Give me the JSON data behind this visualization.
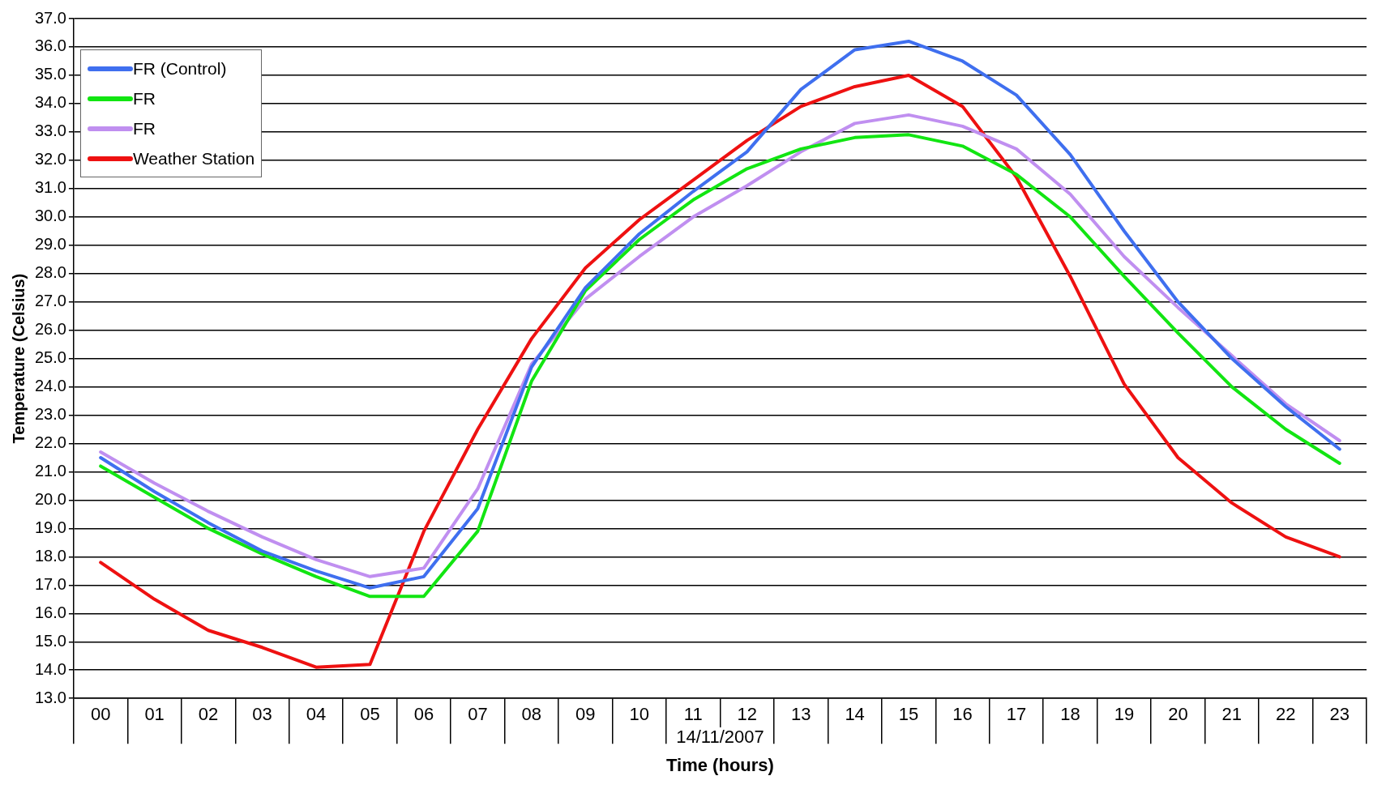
{
  "chart_data": {
    "type": "line",
    "xlabel": "Time (hours)",
    "ylabel": "Temperature (Celsius)",
    "annotations": [
      "14/11/2007"
    ],
    "categories": [
      "00",
      "01",
      "02",
      "03",
      "04",
      "05",
      "06",
      "07",
      "08",
      "09",
      "10",
      "11",
      "12",
      "13",
      "14",
      "15",
      "16",
      "17",
      "18",
      "19",
      "20",
      "21",
      "22",
      "23"
    ],
    "series": [
      {
        "name": "FR (Control)",
        "color": "#3f6fef",
        "values": [
          21.5,
          20.3,
          19.2,
          18.2,
          17.5,
          16.9,
          17.3,
          19.7,
          24.7,
          27.5,
          29.4,
          30.9,
          32.3,
          34.5,
          35.9,
          36.2,
          35.5,
          34.3,
          32.2,
          29.5,
          27.0,
          25.0,
          23.3,
          21.8
        ]
      },
      {
        "name": "FR",
        "color": "#12e512",
        "values": [
          21.2,
          20.1,
          19.0,
          18.1,
          17.3,
          16.6,
          16.6,
          18.9,
          24.2,
          27.4,
          29.2,
          30.6,
          31.7,
          32.4,
          32.8,
          32.9,
          32.5,
          31.5,
          30.0,
          27.9,
          25.9,
          24.0,
          22.5,
          21.3
        ]
      },
      {
        "name": "FR",
        "color": "#c08ff0",
        "values": [
          21.7,
          20.6,
          19.6,
          18.7,
          17.9,
          17.3,
          17.6,
          20.4,
          24.8,
          27.1,
          28.6,
          30.0,
          31.1,
          32.3,
          33.3,
          33.6,
          33.2,
          32.4,
          30.8,
          28.6,
          26.8,
          25.1,
          23.4,
          22.1
        ]
      },
      {
        "name": "Weather Station",
        "color": "#ee1111",
        "values": [
          17.8,
          16.5,
          15.4,
          14.8,
          14.1,
          14.2,
          18.9,
          22.5,
          25.7,
          28.2,
          29.9,
          31.3,
          32.7,
          33.9,
          34.6,
          35.0,
          33.9,
          31.4,
          27.9,
          24.1,
          21.5,
          19.9,
          18.7,
          18.0
        ]
      }
    ],
    "ylim": [
      13,
      37
    ],
    "yticks": [
      {
        "value": 13,
        "label": "13.0"
      },
      {
        "value": 14,
        "label": "14.0"
      },
      {
        "value": 15,
        "label": "15.0"
      },
      {
        "value": 16,
        "label": "16.0"
      },
      {
        "value": 17,
        "label": "17.0"
      },
      {
        "value": 18,
        "label": "18.0"
      },
      {
        "value": 19,
        "label": "19.0"
      },
      {
        "value": 20,
        "label": "20.0"
      },
      {
        "value": 21,
        "label": "21.0"
      },
      {
        "value": 22,
        "label": "22.0"
      },
      {
        "value": 23,
        "label": "23.0"
      },
      {
        "value": 24,
        "label": "24.0"
      },
      {
        "value": 25,
        "label": "25.0"
      },
      {
        "value": 26,
        "label": "26.0"
      },
      {
        "value": 27,
        "label": "27.0"
      },
      {
        "value": 28,
        "label": "28.0"
      },
      {
        "value": 29,
        "label": "29.0"
      },
      {
        "value": 30,
        "label": "30.0"
      },
      {
        "value": 31,
        "label": "31.0"
      },
      {
        "value": 32,
        "label": "32.0"
      },
      {
        "value": 33,
        "label": "33.0"
      },
      {
        "value": 34,
        "label": "34.0"
      },
      {
        "value": 35,
        "label": "35.0"
      },
      {
        "value": 36,
        "label": "36.0"
      },
      {
        "value": 37,
        "label": "37.0"
      }
    ],
    "grid": "y",
    "legend": "top left",
    "marker": "none",
    "line_style": "solid"
  }
}
